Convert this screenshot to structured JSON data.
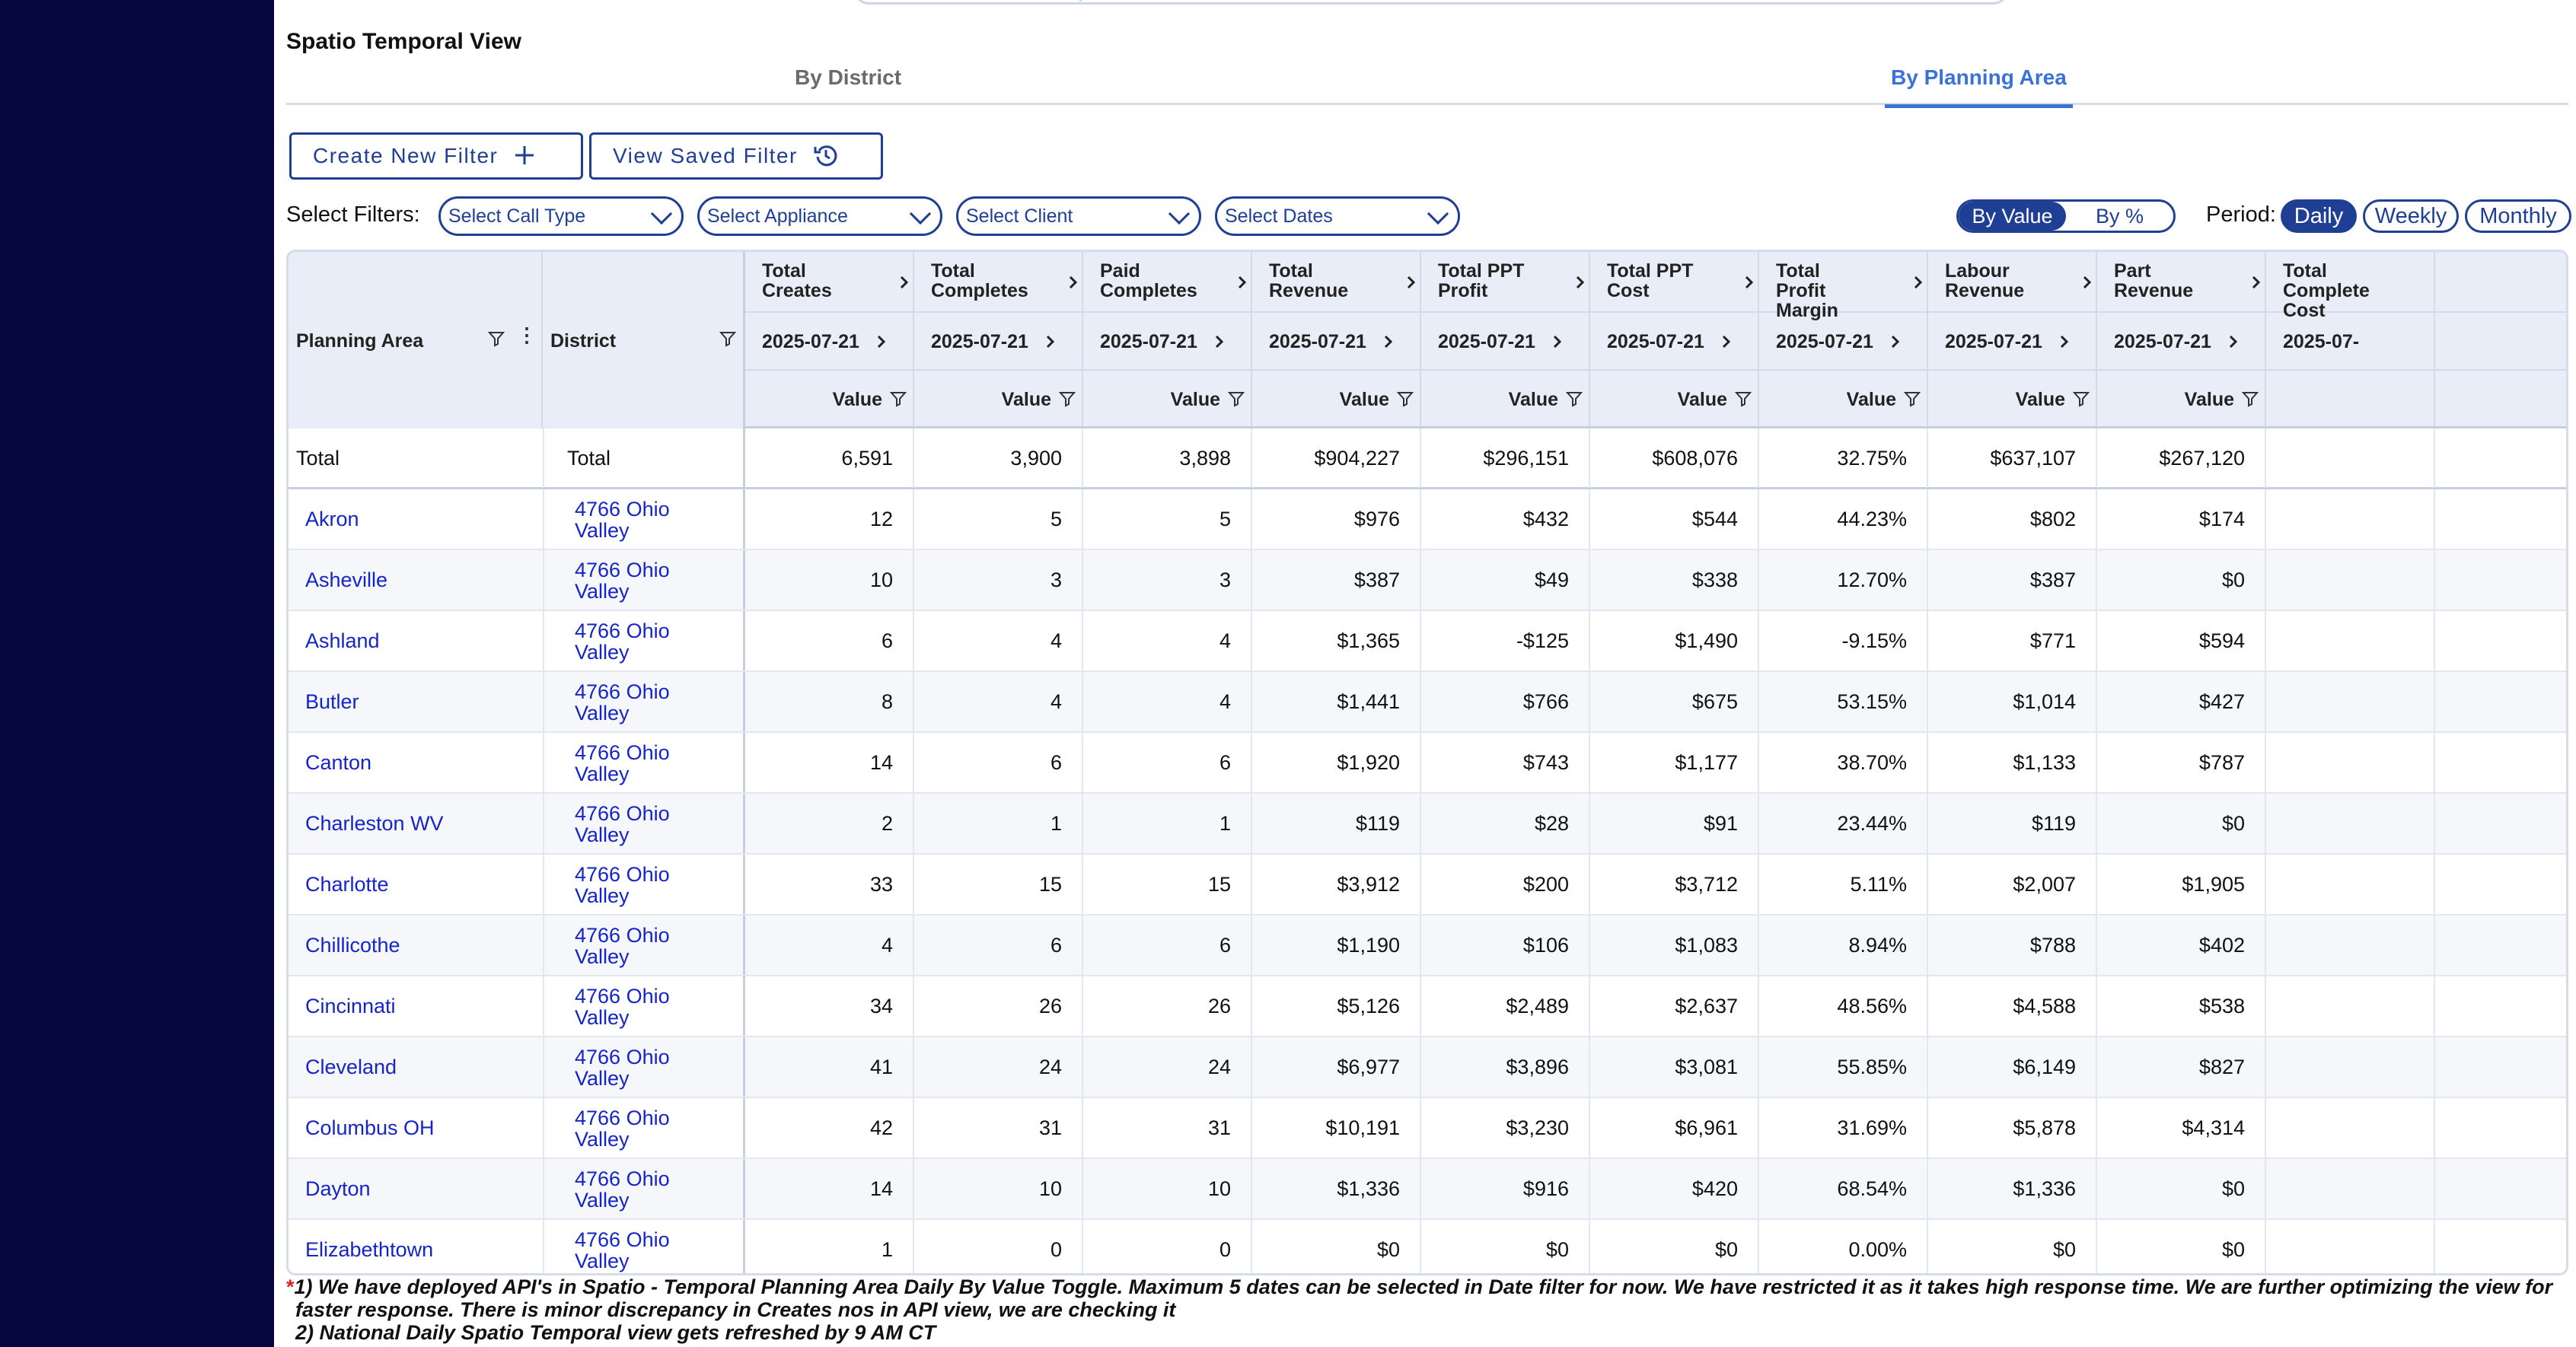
{
  "view_title": "Spatio Temporal View",
  "tabs": [
    {
      "label": "By District",
      "active": false
    },
    {
      "label": "By Planning Area",
      "active": true
    }
  ],
  "buttons": {
    "create_filter": "Create New Filter",
    "view_saved": "View Saved Filter"
  },
  "filters": {
    "label": "Select Filters:",
    "call_type": "Select Call Type",
    "appliance": "Select Appliance",
    "client": "Select Client",
    "dates": "Select Dates"
  },
  "toggle": {
    "by_value": "By Value",
    "by_pct": "By %",
    "selected": "By Value"
  },
  "period": {
    "label": "Period:",
    "options": [
      "Daily",
      "Weekly",
      "Monthly"
    ],
    "selected": "Daily"
  },
  "table": {
    "left_headers": {
      "planning_area": "Planning Area",
      "district": "District"
    },
    "metric_columns": [
      {
        "title": "Total Creates",
        "date": "2025-07-21",
        "sub": "Value"
      },
      {
        "title": "Total Completes",
        "date": "2025-07-21",
        "sub": "Value"
      },
      {
        "title": "Paid Completes",
        "date": "2025-07-21",
        "sub": "Value"
      },
      {
        "title": "Total Revenue",
        "date": "2025-07-21",
        "sub": "Value"
      },
      {
        "title": "Total PPT Profit",
        "date": "2025-07-21",
        "sub": "Value"
      },
      {
        "title": "Total PPT Cost",
        "date": "2025-07-21",
        "sub": "Value"
      },
      {
        "title": "Total Profit Margin",
        "date": "2025-07-21",
        "sub": "Value"
      },
      {
        "title": "Labour Revenue",
        "date": "2025-07-21",
        "sub": "Value"
      },
      {
        "title": "Part Revenue",
        "date": "2025-07-21",
        "sub": "Value"
      },
      {
        "title": "Total Complete Cost",
        "date": "2025-07-",
        "sub": ""
      }
    ],
    "total_row": {
      "area": "Total",
      "district": "Total",
      "values": [
        "6,591",
        "3,900",
        "3,898",
        "$904,227",
        "$296,151",
        "$608,076",
        "32.75%",
        "$637,107",
        "$267,120",
        ""
      ]
    },
    "rows": [
      {
        "area": "Akron",
        "district": "4766 Ohio Valley",
        "values": [
          "12",
          "5",
          "5",
          "$976",
          "$432",
          "$544",
          "44.23%",
          "$802",
          "$174",
          ""
        ]
      },
      {
        "area": "Asheville",
        "district": "4766 Ohio Valley",
        "values": [
          "10",
          "3",
          "3",
          "$387",
          "$49",
          "$338",
          "12.70%",
          "$387",
          "$0",
          ""
        ]
      },
      {
        "area": "Ashland",
        "district": "4766 Ohio Valley",
        "values": [
          "6",
          "4",
          "4",
          "$1,365",
          "-$125",
          "$1,490",
          "-9.15%",
          "$771",
          "$594",
          ""
        ]
      },
      {
        "area": "Butler",
        "district": "4766 Ohio Valley",
        "values": [
          "8",
          "4",
          "4",
          "$1,441",
          "$766",
          "$675",
          "53.15%",
          "$1,014",
          "$427",
          ""
        ]
      },
      {
        "area": "Canton",
        "district": "4766 Ohio Valley",
        "values": [
          "14",
          "6",
          "6",
          "$1,920",
          "$743",
          "$1,177",
          "38.70%",
          "$1,133",
          "$787",
          ""
        ]
      },
      {
        "area": "Charleston WV",
        "district": "4766 Ohio Valley",
        "values": [
          "2",
          "1",
          "1",
          "$119",
          "$28",
          "$91",
          "23.44%",
          "$119",
          "$0",
          ""
        ]
      },
      {
        "area": "Charlotte",
        "district": "4766 Ohio Valley",
        "values": [
          "33",
          "15",
          "15",
          "$3,912",
          "$200",
          "$3,712",
          "5.11%",
          "$2,007",
          "$1,905",
          ""
        ]
      },
      {
        "area": "Chillicothe",
        "district": "4766 Ohio Valley",
        "values": [
          "4",
          "6",
          "6",
          "$1,190",
          "$106",
          "$1,083",
          "8.94%",
          "$788",
          "$402",
          ""
        ]
      },
      {
        "area": "Cincinnati",
        "district": "4766 Ohio Valley",
        "values": [
          "34",
          "26",
          "26",
          "$5,126",
          "$2,489",
          "$2,637",
          "48.56%",
          "$4,588",
          "$538",
          ""
        ]
      },
      {
        "area": "Cleveland",
        "district": "4766 Ohio Valley",
        "values": [
          "41",
          "24",
          "24",
          "$6,977",
          "$3,896",
          "$3,081",
          "55.85%",
          "$6,149",
          "$827",
          ""
        ]
      },
      {
        "area": "Columbus OH",
        "district": "4766 Ohio Valley",
        "values": [
          "42",
          "31",
          "31",
          "$10,191",
          "$3,230",
          "$6,961",
          "31.69%",
          "$5,878",
          "$4,314",
          ""
        ]
      },
      {
        "area": "Dayton",
        "district": "4766 Ohio Valley",
        "values": [
          "14",
          "10",
          "10",
          "$1,336",
          "$916",
          "$420",
          "68.54%",
          "$1,336",
          "$0",
          ""
        ]
      },
      {
        "area": "Elizabethtown",
        "district": "4766 Ohio Valley",
        "values": [
          "1",
          "0",
          "0",
          "$0",
          "$0",
          "$0",
          "0.00%",
          "$0",
          "$0",
          ""
        ]
      }
    ]
  },
  "footnote": {
    "star": "*",
    "line1": "1) We have deployed API's in Spatio - Temporal Planning Area Daily By Value Toggle. Maximum 5 dates can be selected in Date filter for now. We have restricted it as it takes high response time. We are further optimizing the view for",
    "line1b": "faster response. There is minor discrepancy in Creates nos in API view, we are checking it",
    "line2": "2) National Daily Spatio Temporal view gets refreshed by 9 AM CT"
  },
  "icons": [
    "plus-icon",
    "history-icon",
    "chevron-down-icon",
    "filter-icon",
    "kebab-icon",
    "chevron-right-icon"
  ],
  "colors": {
    "sidebar": "#06063f",
    "accent": "#1f3f95",
    "tab_active": "#3a72d8",
    "link": "#1424c8",
    "header_bg": "#e8edf7"
  }
}
